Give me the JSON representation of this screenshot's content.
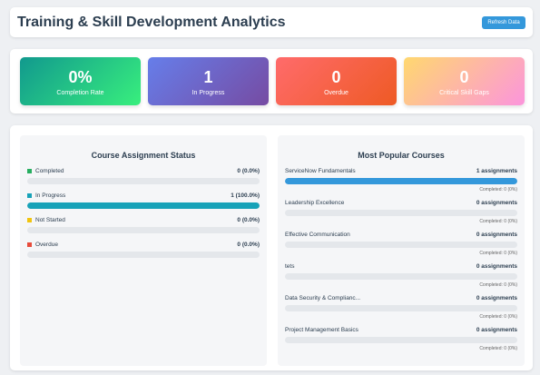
{
  "header": {
    "title": "Training & Skill Development Analytics",
    "refresh_label": "Refresh Data"
  },
  "stats": [
    {
      "value": "0%",
      "label": "Completion Rate"
    },
    {
      "value": "1",
      "label": "In Progress"
    },
    {
      "value": "0",
      "label": "Overdue"
    },
    {
      "value": "0",
      "label": "Critical Skill Gaps"
    }
  ],
  "status": {
    "title": "Course Assignment Status",
    "items": [
      {
        "label": "Completed",
        "value": "0 (0.0%)",
        "color": "#27ae60",
        "fill": 0
      },
      {
        "label": "In Progress",
        "value": "1 (100.0%)",
        "color": "#17a2b8",
        "fill": 1.0
      },
      {
        "label": "Not Started",
        "value": "0 (0.0%)",
        "color": "#f1c40f",
        "fill": 0
      },
      {
        "label": "Overdue",
        "value": "0 (0.0%)",
        "color": "#e74c3c",
        "fill": 0
      }
    ]
  },
  "courses": {
    "title": "Most Popular Courses",
    "bar_color": "#3498db",
    "items": [
      {
        "name": "ServiceNow Fundamentals",
        "assignments": "1 assignments",
        "completed": "Completed: 0 (0%)",
        "fill": 1.0
      },
      {
        "name": "Leadership Excellence",
        "assignments": "0 assignments",
        "completed": "Completed: 0 (0%)",
        "fill": 0
      },
      {
        "name": "Effective Communication",
        "assignments": "0 assignments",
        "completed": "Completed: 0 (0%)",
        "fill": 0
      },
      {
        "name": "tets",
        "assignments": "0 assignments",
        "completed": "Completed: 0 (0%)",
        "fill": 0
      },
      {
        "name": "Data Security & Complianc...",
        "assignments": "0 assignments",
        "completed": "Completed: 0 (0%)",
        "fill": 0
      },
      {
        "name": "Project Management Basics",
        "assignments": "0 assignments",
        "completed": "Completed: 0 (0%)",
        "fill": 0
      }
    ]
  }
}
